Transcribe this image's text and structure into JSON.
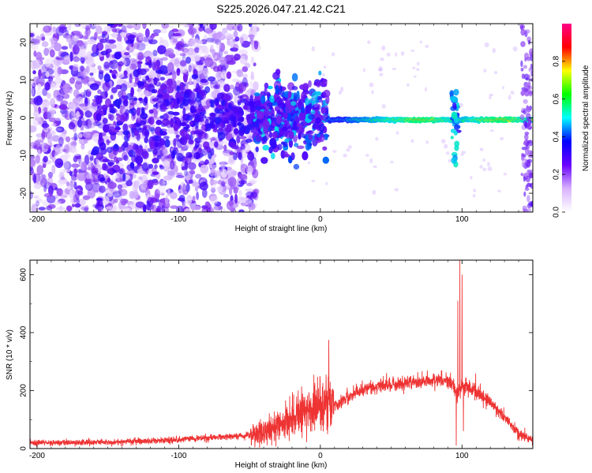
{
  "title": "S225.2026.047.21.42.C21",
  "chart_data": [
    {
      "type": "heatmap",
      "name": "spectrogram",
      "xlabel": "Height of straight line (km)",
      "ylabel": "Frequency (Hz)",
      "xlim": [
        -205,
        150
      ],
      "ylim": [
        -25,
        25
      ],
      "xticks": [
        -200,
        -100,
        0,
        100
      ],
      "yticks": [
        -20,
        -10,
        0,
        10,
        20
      ],
      "colorbar": {
        "label": "Normalized spectral amplitude",
        "range": [
          0.0,
          1.0
        ],
        "ticks": [
          "0.0",
          "0.2",
          "0.4",
          "0.6",
          "0.8"
        ],
        "stops": [
          "#ffffff",
          "#d9b3ff",
          "#6a00ff",
          "#0000ff",
          "#00ffff",
          "#00ff00",
          "#ffff00",
          "#ff0000",
          "#ff0088"
        ]
      },
      "features": {
        "noise_region_km": [
          -205,
          -45
        ],
        "transition_region_km": [
          -45,
          5
        ],
        "carrier_region_km": [
          5,
          150
        ],
        "carrier_frequency_hz": -0.5,
        "spike_at_km": 95,
        "edge_noise_from_km": 142
      }
    },
    {
      "type": "line",
      "name": "snr",
      "xlabel": "Height of straight line (km)",
      "ylabel": "SNR (10 * v/v)",
      "xlim": [
        -205,
        150
      ],
      "ylim": [
        0,
        650
      ],
      "xticks": [
        -200,
        -100,
        0,
        100
      ],
      "yticks": [
        0,
        200,
        400,
        600
      ],
      "color": "#ee3333",
      "envelope": {
        "x": [
          -205,
          -150,
          -100,
          -70,
          -50,
          -40,
          -30,
          -20,
          -10,
          0,
          10,
          20,
          30,
          40,
          50,
          60,
          70,
          80,
          90,
          94,
          97,
          100,
          105,
          110,
          120,
          130,
          140,
          150
        ],
        "y": [
          20,
          22,
          30,
          40,
          45,
          55,
          75,
          110,
          130,
          140,
          150,
          180,
          205,
          215,
          220,
          228,
          232,
          238,
          240,
          220,
          180,
          215,
          215,
          200,
          160,
          110,
          50,
          30
        ]
      },
      "spikes": [
        {
          "x": 6,
          "y": 375
        },
        {
          "x": 4,
          "y": 255
        },
        {
          "x": 97,
          "y": 510
        },
        {
          "x": 98.5,
          "y": 650
        },
        {
          "x": 100,
          "y": 600
        }
      ],
      "dips": [
        {
          "x": 96,
          "y": 10
        },
        {
          "x": 101,
          "y": 60
        }
      ]
    }
  ]
}
